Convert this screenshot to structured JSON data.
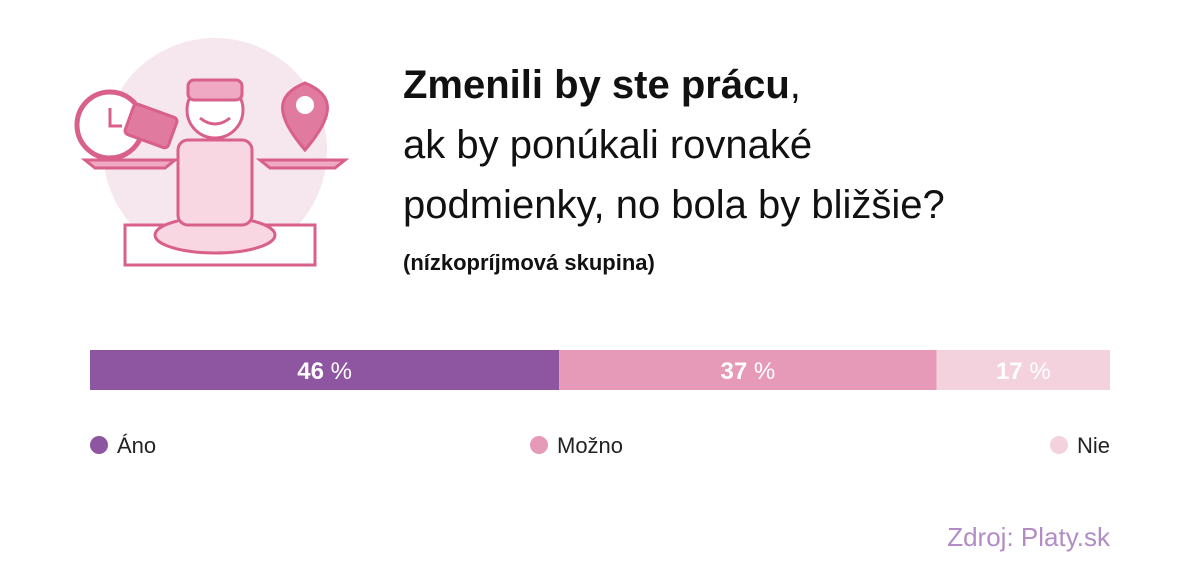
{
  "chart_data": {
    "type": "stacked-bar",
    "title": [
      "Zmenili by ste prácu",
      ",",
      "ak by ponúkali rovnaké",
      "podmienky, no bola by bližšie?"
    ],
    "subtitle": "(nízkopríjmová skupina)",
    "unit": "%",
    "xlim": [
      0,
      100
    ],
    "series": [
      {
        "name": "Áno",
        "color": "#8e55a0",
        "values": [
          46
        ]
      },
      {
        "name": "Možno",
        "color": "#e69ab7",
        "values": [
          37
        ]
      },
      {
        "name": "Nie",
        "color": "#f3d2de",
        "values": [
          17
        ]
      }
    ],
    "source": "Zdroj: Platy.sk"
  }
}
